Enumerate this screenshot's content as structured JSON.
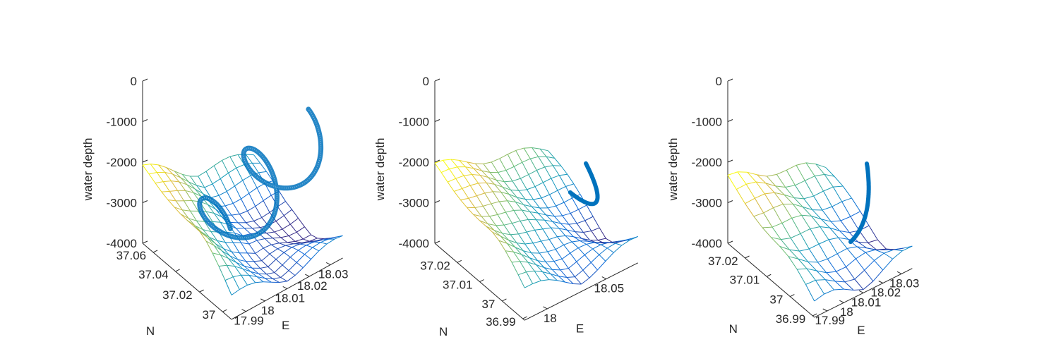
{
  "figure": {
    "colors": {
      "axis": "#262626",
      "trajectory": "#0072BD"
    },
    "colormap": "parula"
  },
  "chart_data": [
    {
      "type": "3d-surface-mesh",
      "subplot": 1,
      "zlabel": "water depth",
      "ylabel": "N",
      "xlabel": "E",
      "zticks": [
        "0",
        "-1000",
        "-2000",
        "-3000",
        "-4000"
      ],
      "zlim": [
        -4000,
        0
      ],
      "yticks": [
        "37.06",
        "37.04",
        "37.02",
        "37"
      ],
      "xticks": [
        "17.99",
        "18",
        "18.01",
        "18.02",
        "18.03"
      ],
      "surface": {
        "depth_range": [
          -4000,
          -2100
        ],
        "grid": [
          14,
          14
        ]
      },
      "trajectory": {
        "style": "helix",
        "z_range": [
          -3450,
          -1050
        ]
      }
    },
    {
      "type": "3d-surface-mesh",
      "subplot": 2,
      "zlabel": "water depth",
      "ylabel": "N",
      "xlabel": "E",
      "zticks": [
        "0",
        "-1000",
        "-2000",
        "-3000",
        "-4000"
      ],
      "zlim": [
        -4000,
        0
      ],
      "yticks": [
        "37.02",
        "37.01",
        "37",
        "36.99"
      ],
      "xticks": [
        "18",
        "18.05"
      ],
      "surface": {
        "depth_range": [
          -4000,
          -2100
        ],
        "grid": [
          14,
          14
        ]
      },
      "trajectory": {
        "style": "arc",
        "z_range": [
          -3200,
          -1200
        ]
      }
    },
    {
      "type": "3d-surface-mesh",
      "subplot": 3,
      "zlabel": "water depth",
      "ylabel": "N",
      "xlabel": "E",
      "zticks": [
        "0",
        "-1000",
        "-2000",
        "-3000",
        "-4000"
      ],
      "zlim": [
        -4000,
        0
      ],
      "yticks": [
        "37.02",
        "37.01",
        "37",
        "36.99"
      ],
      "xticks": [
        "17.99",
        "18",
        "18.01",
        "18.02",
        "18.03"
      ],
      "surface": {
        "depth_range": [
          -4000,
          -2400
        ],
        "grid": [
          10,
          10
        ]
      },
      "trajectory": {
        "style": "arc",
        "z_range": [
          -3600,
          -1000
        ]
      }
    }
  ]
}
